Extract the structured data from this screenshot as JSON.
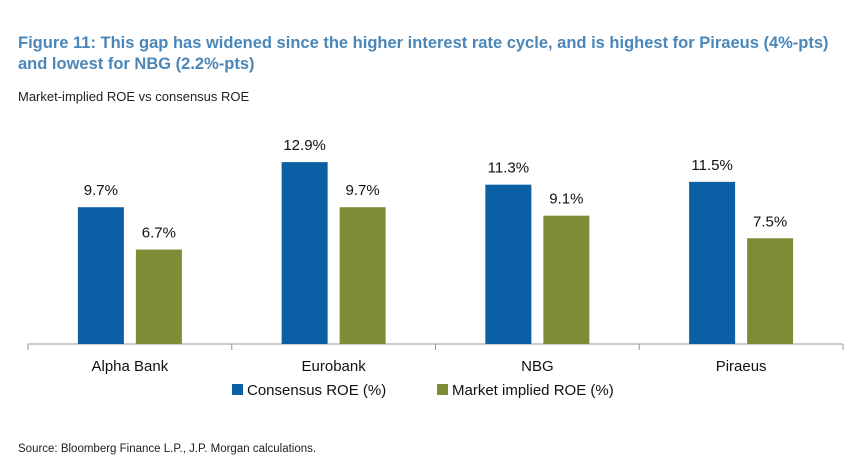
{
  "chart_data": {
    "type": "bar",
    "title": "Figure 11: This gap has widened since the higher interest rate cycle, and is highest for Piraeus (4%-pts) and lowest for NBG (2.2%-pts)",
    "subtitle": "Market-implied ROE vs consensus ROE",
    "categories": [
      "Alpha Bank",
      "Eurobank",
      "NBG",
      "Piraeus"
    ],
    "series": [
      {
        "name": "Consensus ROE (%)",
        "color": "#0b5fa5",
        "values": [
          9.7,
          12.9,
          11.3,
          11.5
        ],
        "labels": [
          "9.7%",
          "12.9%",
          "11.3%",
          "11.5%"
        ]
      },
      {
        "name": "Market implied ROE (%)",
        "color": "#7f8b35",
        "values": [
          6.7,
          9.7,
          9.1,
          7.5
        ],
        "labels": [
          "6.7%",
          "9.7%",
          "9.1%",
          "7.5%"
        ]
      }
    ],
    "ylim": [
      0,
      14
    ],
    "grid": false,
    "legend_position": "bottom-center",
    "xlabel": "",
    "ylabel": ""
  },
  "source": "Source: Bloomberg Finance L.P., J.P. Morgan calculations."
}
